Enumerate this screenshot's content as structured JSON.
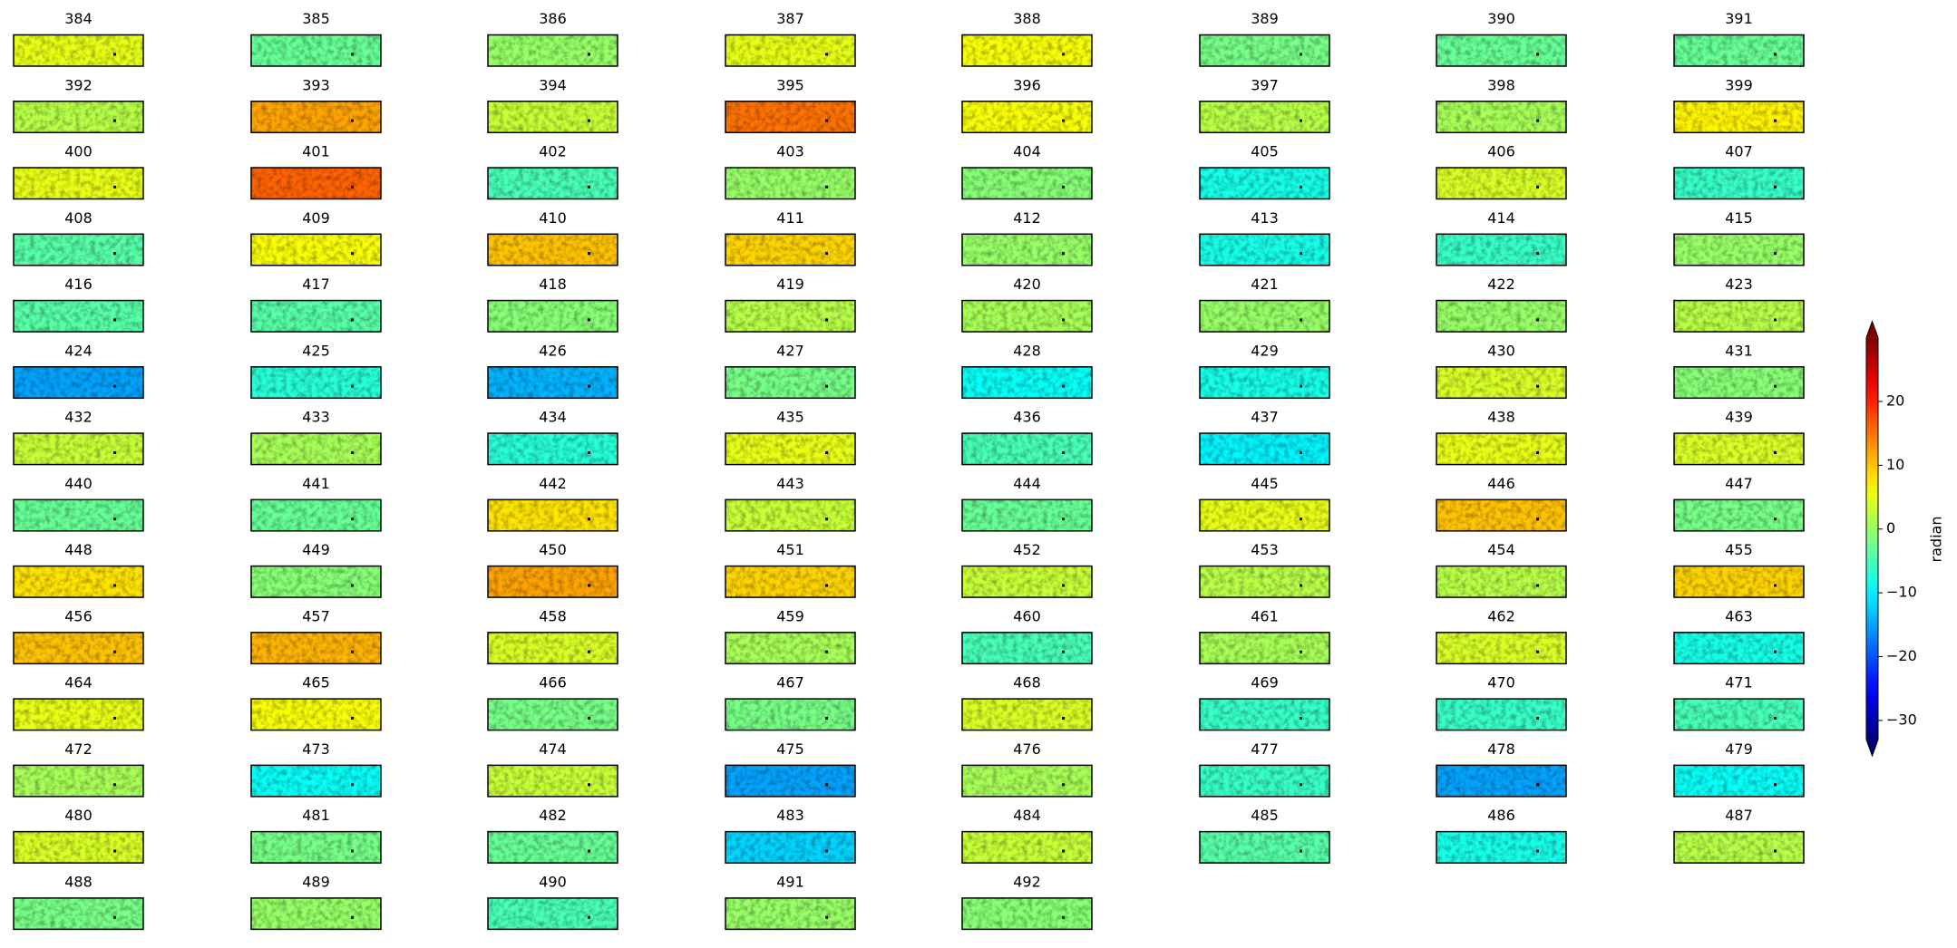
{
  "chart_data": {
    "type": "image-grid",
    "titles": [
      "384",
      "385",
      "386",
      "387",
      "388",
      "389",
      "390",
      "391",
      "392",
      "393",
      "394",
      "395",
      "396",
      "397",
      "398",
      "399",
      "400",
      "401",
      "402",
      "403",
      "404",
      "405",
      "406",
      "407",
      "408",
      "409",
      "410",
      "411",
      "412",
      "413",
      "414",
      "415",
      "416",
      "417",
      "418",
      "419",
      "420",
      "421",
      "422",
      "423",
      "424",
      "425",
      "426",
      "427",
      "428",
      "429",
      "430",
      "431",
      "432",
      "433",
      "434",
      "435",
      "436",
      "437",
      "438",
      "439",
      "440",
      "441",
      "442",
      "443",
      "444",
      "445",
      "446",
      "447",
      "448",
      "449",
      "450",
      "451",
      "452",
      "453",
      "454",
      "455",
      "456",
      "457",
      "458",
      "459",
      "460",
      "461",
      "462",
      "463",
      "464",
      "465",
      "466",
      "467",
      "468",
      "469",
      "470",
      "471",
      "472",
      "473",
      "474",
      "475",
      "476",
      "477",
      "478",
      "479",
      "480",
      "481",
      "482",
      "483",
      "484",
      "485",
      "486",
      "487",
      "488",
      "489",
      "490",
      "491",
      "492"
    ],
    "values": [
      5,
      -3,
      0,
      5,
      6,
      -2,
      -3,
      -3,
      2,
      12,
      3,
      15,
      6,
      2,
      1,
      7,
      5,
      16,
      -5,
      0,
      -1,
      -8,
      4,
      -6,
      -4,
      6,
      10,
      9,
      0,
      -8,
      -6,
      0,
      -4,
      -4,
      -1,
      2,
      1,
      0,
      0,
      2,
      -15,
      -7,
      -14,
      -2,
      -9,
      -8,
      4,
      -1,
      3,
      1,
      -7,
      5,
      -5,
      -10,
      5,
      4,
      -3,
      -3,
      8,
      3,
      -3,
      5,
      10,
      -2,
      8,
      -1,
      12,
      9,
      3,
      2,
      2,
      9,
      10,
      11,
      4,
      1,
      -5,
      1,
      4,
      -8,
      5,
      6,
      -2,
      -2,
      4,
      -6,
      -6,
      -5,
      1,
      -9,
      3,
      -15,
      1,
      -6,
      -15,
      -9,
      4,
      -2,
      -3,
      -12,
      3,
      -4,
      -8,
      2,
      -2,
      0,
      -5,
      0,
      -1
    ],
    "colormap": "jet",
    "clim": [
      -33,
      30
    ],
    "colorbar_label": "radian",
    "colorbar_ticks": [
      {
        "value": -30,
        "label": "−30"
      },
      {
        "value": -20,
        "label": "−20"
      },
      {
        "value": -10,
        "label": "−10"
      },
      0,
      10,
      20
    ]
  }
}
